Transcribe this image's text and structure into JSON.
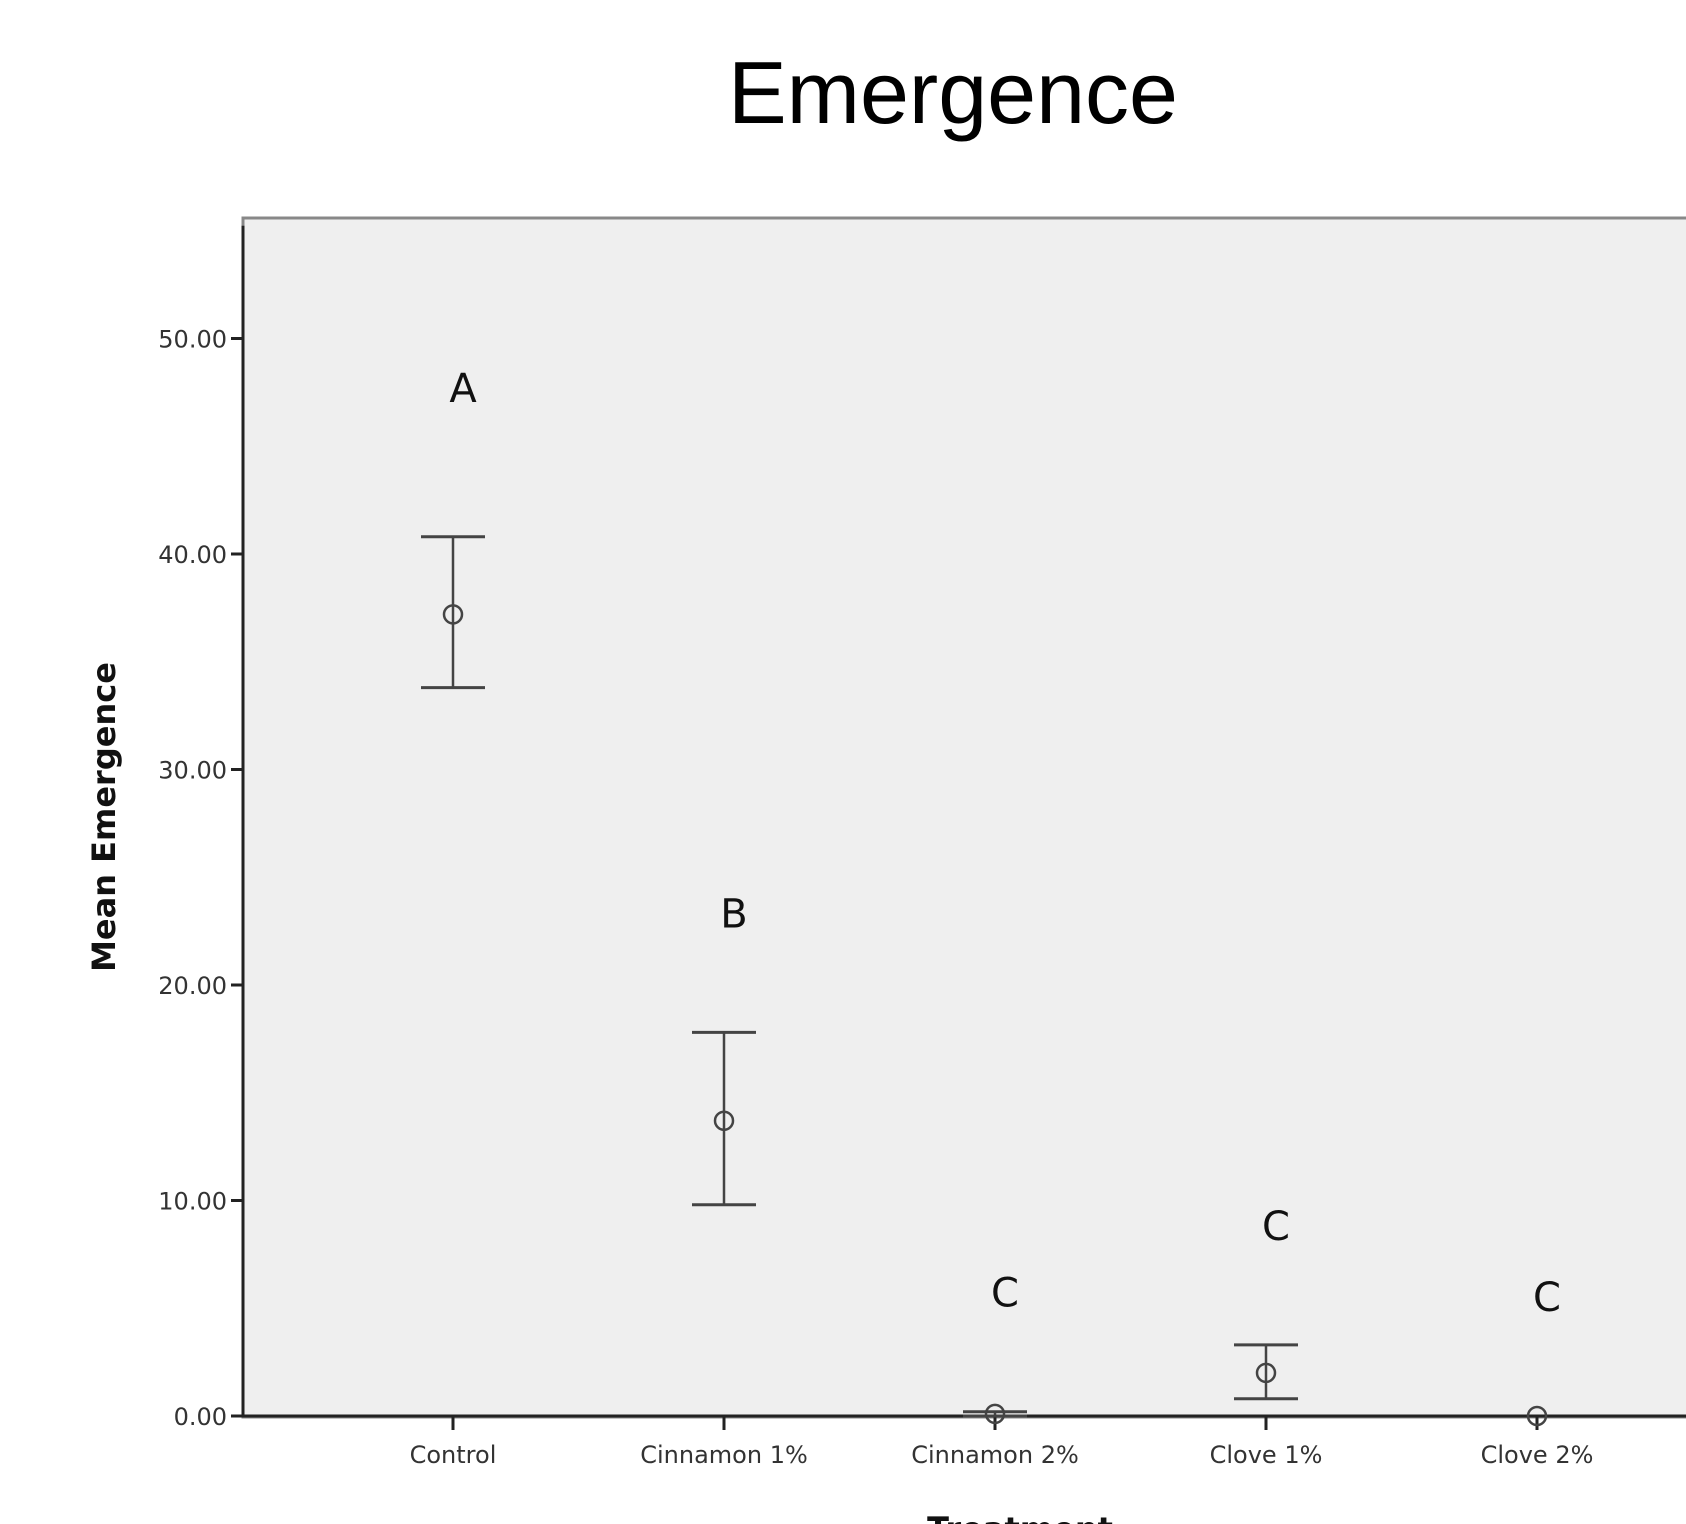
{
  "chart_data": {
    "type": "scatter",
    "title": "Emergence",
    "xlabel": "Treatment",
    "ylabel": "Mean Emergence",
    "categories": [
      "Control",
      "Cinnamon 1%",
      "Cinnamon 2%",
      "Clove 1%",
      "Clove 2%"
    ],
    "series": [
      {
        "values": [
          37.2,
          13.7,
          0.1,
          2.0,
          0.0
        ],
        "lower": [
          33.8,
          9.8,
          0.0,
          0.8,
          0.0
        ],
        "upper": [
          40.8,
          17.8,
          0.2,
          3.3,
          0.0
        ]
      }
    ],
    "group_letters": [
      "A",
      "B",
      "C",
      "C",
      "C"
    ],
    "ylim": [
      0,
      55
    ],
    "yticks": [
      0,
      10,
      20,
      30,
      40,
      50
    ],
    "ytick_labels": [
      "0.00",
      "10.00",
      "20.00",
      "30.00",
      "40.00",
      "50.00"
    ],
    "grid": false,
    "colors": {
      "plot_background": "#efefef",
      "marks": "#444444",
      "axis": "#222222"
    }
  }
}
